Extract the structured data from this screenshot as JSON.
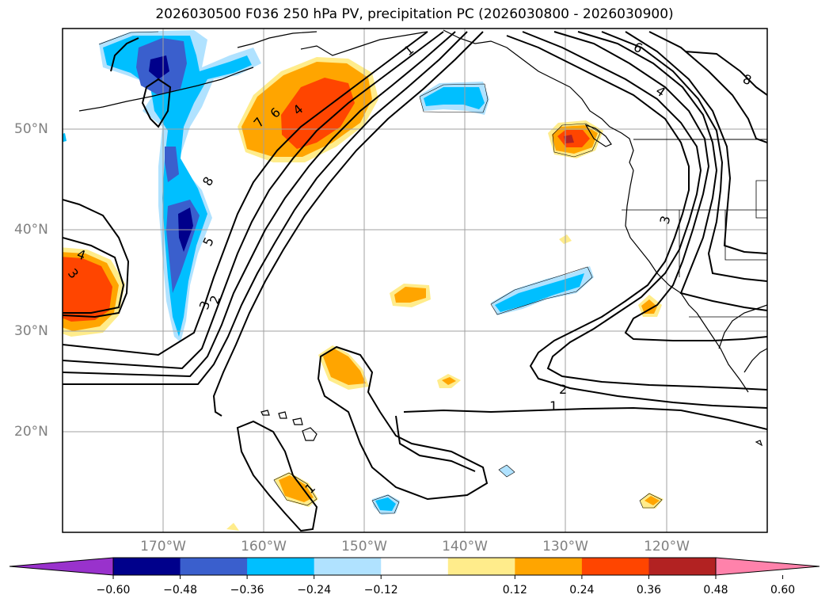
{
  "title": "2026030500 F036 250 hPa PV, precipitation PC (2026030800 - 2026030900)",
  "longitude_labels": [
    "170°W",
    "160°W",
    "150°W",
    "140°W",
    "130°W",
    "120°W"
  ],
  "latitude_labels": [
    "50°N",
    "40°N",
    "30°N",
    "20°N"
  ],
  "contour_labels": [
    "1",
    "6",
    "8",
    "4",
    "7",
    "6",
    "4",
    "8",
    "5",
    "3",
    "2",
    "4",
    "3",
    "2",
    "1",
    "1",
    "3"
  ],
  "colorbar": {
    "tick_labels": [
      "−0.60",
      "−0.48",
      "−0.36",
      "−0.24",
      "−0.12",
      "0.12",
      "0.24",
      "0.36",
      "0.48",
      "0.60"
    ],
    "colors": [
      "#9932cc",
      "#00008b",
      "#3a5fcd",
      "#00bfff",
      "#b0e2ff",
      "#ffffff",
      "#ffec8b",
      "#ffa500",
      "#ff4500",
      "#b22222",
      "#ff82ab"
    ]
  },
  "colors": {
    "grid": "#a0a0a0",
    "coast": "#000000",
    "contour": "#000000"
  }
}
